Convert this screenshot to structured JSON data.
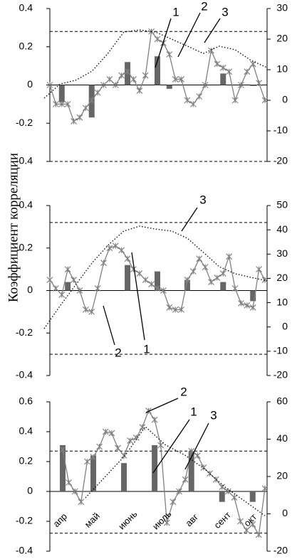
{
  "y_axis_label": "Коэффициент корреляции",
  "chart_data": [
    {
      "type": "combo",
      "ylim": [
        -0.4,
        0.4
      ],
      "yticks": [
        0.4,
        0.2,
        0,
        -0.2,
        -0.4
      ],
      "y2lim": [
        -20,
        30
      ],
      "y2ticks": [
        30,
        20,
        10,
        0,
        -10,
        -20
      ],
      "reference_lines": [
        0.28,
        -0.4
      ],
      "series": [
        {
          "kind": "bar",
          "color": "#666666",
          "values": [
            null,
            null,
            -0.09,
            null,
            null,
            null,
            null,
            -0.17,
            null,
            null,
            null,
            null,
            null,
            0.12,
            null,
            null,
            null,
            null,
            0.15,
            null,
            -0.02,
            null,
            null,
            null,
            null,
            null,
            null,
            null,
            null,
            0.06,
            null,
            null,
            null,
            null,
            -0.005,
            null,
            null
          ]
        },
        {
          "kind": "line-marker",
          "color": "#808080",
          "values": [
            0.0,
            -0.1,
            -0.1,
            -0.1,
            -0.19,
            -0.17,
            -0.12,
            -0.08,
            -0.04,
            0.0,
            0.03,
            0.0,
            0.05,
            0.07,
            0.03,
            -0.03,
            0.05,
            0.28,
            0.24,
            0.22,
            0.16,
            0.03,
            0.03,
            -0.08,
            -0.1,
            -0.06,
            0.0,
            0.18,
            0.11,
            0.09,
            0.07,
            -0.08,
            0.0,
            0.07,
            0.11,
            0.01,
            -0.08
          ]
        },
        {
          "kind": "dotted",
          "axis": "y2",
          "color": "#000000",
          "values": [
            0.7,
            5.3,
            6.6,
            9.5,
            15.3,
            22.3,
            23,
            22.3,
            20,
            17.7,
            15.3,
            17.7,
            16.5,
            13,
            10.7
          ]
        }
      ],
      "annotations": [
        "1",
        "2",
        "3"
      ]
    },
    {
      "type": "combo",
      "ylim": [
        -0.4,
        0.4
      ],
      "yticks": [
        0.4,
        0.2,
        0,
        -0.2,
        -0.4
      ],
      "y2lim": [
        -20,
        50
      ],
      "y2ticks": [
        50,
        40,
        30,
        20,
        10,
        0,
        -10,
        -20
      ],
      "reference_lines": [
        0.32,
        -0.3
      ],
      "series": [
        {
          "kind": "bar",
          "color": "#666666",
          "values": [
            null,
            null,
            null,
            0.04,
            null,
            null,
            null,
            null,
            null,
            null,
            null,
            null,
            null,
            0.12,
            null,
            null,
            null,
            null,
            0.09,
            null,
            null,
            null,
            null,
            0.05,
            null,
            null,
            null,
            null,
            null,
            0.04,
            null,
            null,
            null,
            null,
            -0.05,
            null,
            null
          ]
        },
        {
          "kind": "line-marker",
          "color": "#808080",
          "values": [
            0.05,
            0.01,
            -0.02,
            0.1,
            0.05,
            0.0,
            -0.09,
            -0.1,
            0.01,
            0.13,
            0.2,
            0.21,
            0.19,
            0.15,
            0.1,
            0.08,
            0.05,
            0.03,
            0.01,
            0.0,
            -0.08,
            -0.09,
            -0.09,
            0.05,
            0.09,
            0.15,
            0.11,
            0.04,
            0.06,
            0.08,
            0.16,
            0.01,
            -0.06,
            -0.07,
            -0.08,
            0.1,
            0.05
          ]
        },
        {
          "kind": "dotted",
          "axis": "y2",
          "color": "#000000",
          "values": [
            -0.7,
            8.7,
            17.5,
            26.3,
            33.6,
            39.5,
            41.5,
            40.3,
            39.5,
            36.5,
            30.7,
            24.8,
            21.9,
            20.4,
            19
          ]
        }
      ],
      "annotations": [
        "3",
        "2",
        "1"
      ]
    },
    {
      "type": "combo",
      "ylim": [
        -0.4,
        0.6
      ],
      "yticks": [
        0.6,
        0.4,
        0.2,
        0,
        -0.2,
        -0.4
      ],
      "y2lim": [
        -20,
        60
      ],
      "y2ticks": [
        60,
        40,
        20,
        0,
        -20
      ],
      "reference_lines": [
        0.27,
        -0.28
      ],
      "month_labels": [
        "апр",
        "май",
        "июнь",
        "июль",
        "авг",
        "сент",
        "окт"
      ],
      "series": [
        {
          "kind": "bar",
          "color": "#666666",
          "values": [
            0.31,
            null,
            null,
            null,
            null,
            0.24,
            null,
            null,
            null,
            null,
            0.19,
            null,
            null,
            null,
            null,
            0.31,
            null,
            null,
            null,
            null,
            null,
            0.27,
            null,
            null,
            null,
            null,
            -0.07,
            null,
            null,
            null,
            null,
            -0.07,
            null,
            null
          ]
        },
        {
          "kind": "line-marker",
          "color": "#808080",
          "values": [
            0.28,
            0.06,
            0.0,
            -0.07,
            0.2,
            0.23,
            0.3,
            0.4,
            0.39,
            0.29,
            0.24,
            0.34,
            0.36,
            0.43,
            0.54,
            0.48,
            0.31,
            -0.21,
            -0.07,
            0.0,
            0.08,
            0.27,
            0.24,
            0.16,
            0.12,
            0.08,
            0.03,
            0.0,
            -0.04,
            -0.2,
            -0.26,
            -0.22,
            -0.29,
            0.02
          ]
        },
        {
          "kind": "dotted",
          "axis": "y2",
          "color": "#000000",
          "values": [
            8.6,
            20,
            31.4,
            46.7,
            37,
            31.4,
            23.8,
            14.3,
            6.7,
            -1
          ]
        }
      ],
      "annotations": [
        "2",
        "1",
        "3"
      ]
    }
  ]
}
